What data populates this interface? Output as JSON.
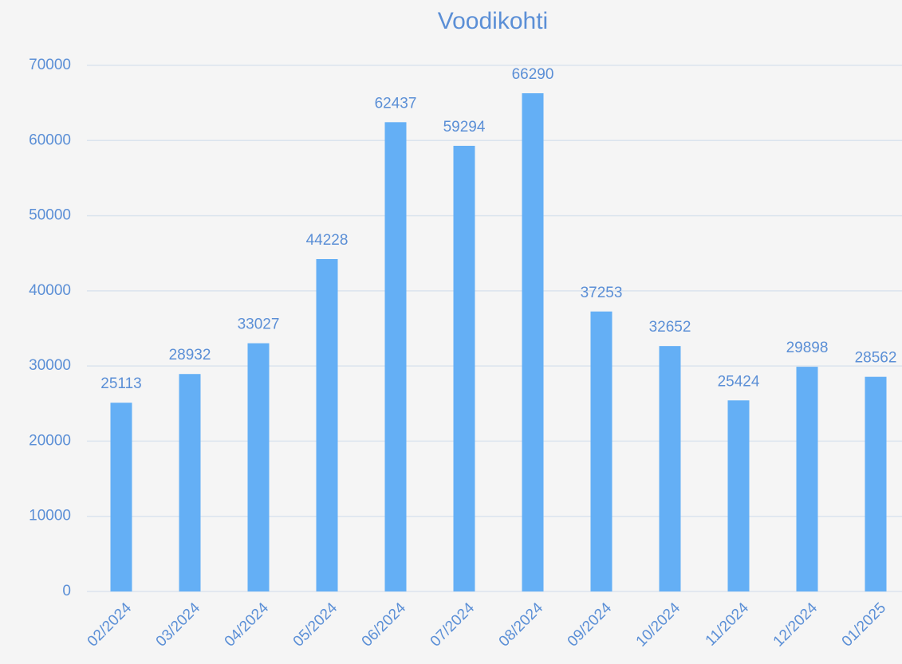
{
  "chart_data": {
    "type": "bar",
    "title": "Voodikohti",
    "categories": [
      "02/2024",
      "03/2024",
      "04/2024",
      "05/2024",
      "06/2024",
      "07/2024",
      "08/2024",
      "09/2024",
      "10/2024",
      "11/2024",
      "12/2024",
      "01/2025"
    ],
    "values": [
      25113,
      28932,
      33027,
      44228,
      62437,
      59294,
      66290,
      37253,
      32652,
      25424,
      29898,
      28562
    ],
    "color": "#64aff5",
    "ylim": [
      0,
      70000
    ],
    "yticks": [
      0,
      10000,
      20000,
      30000,
      40000,
      50000,
      60000,
      70000
    ],
    "grid": true
  }
}
